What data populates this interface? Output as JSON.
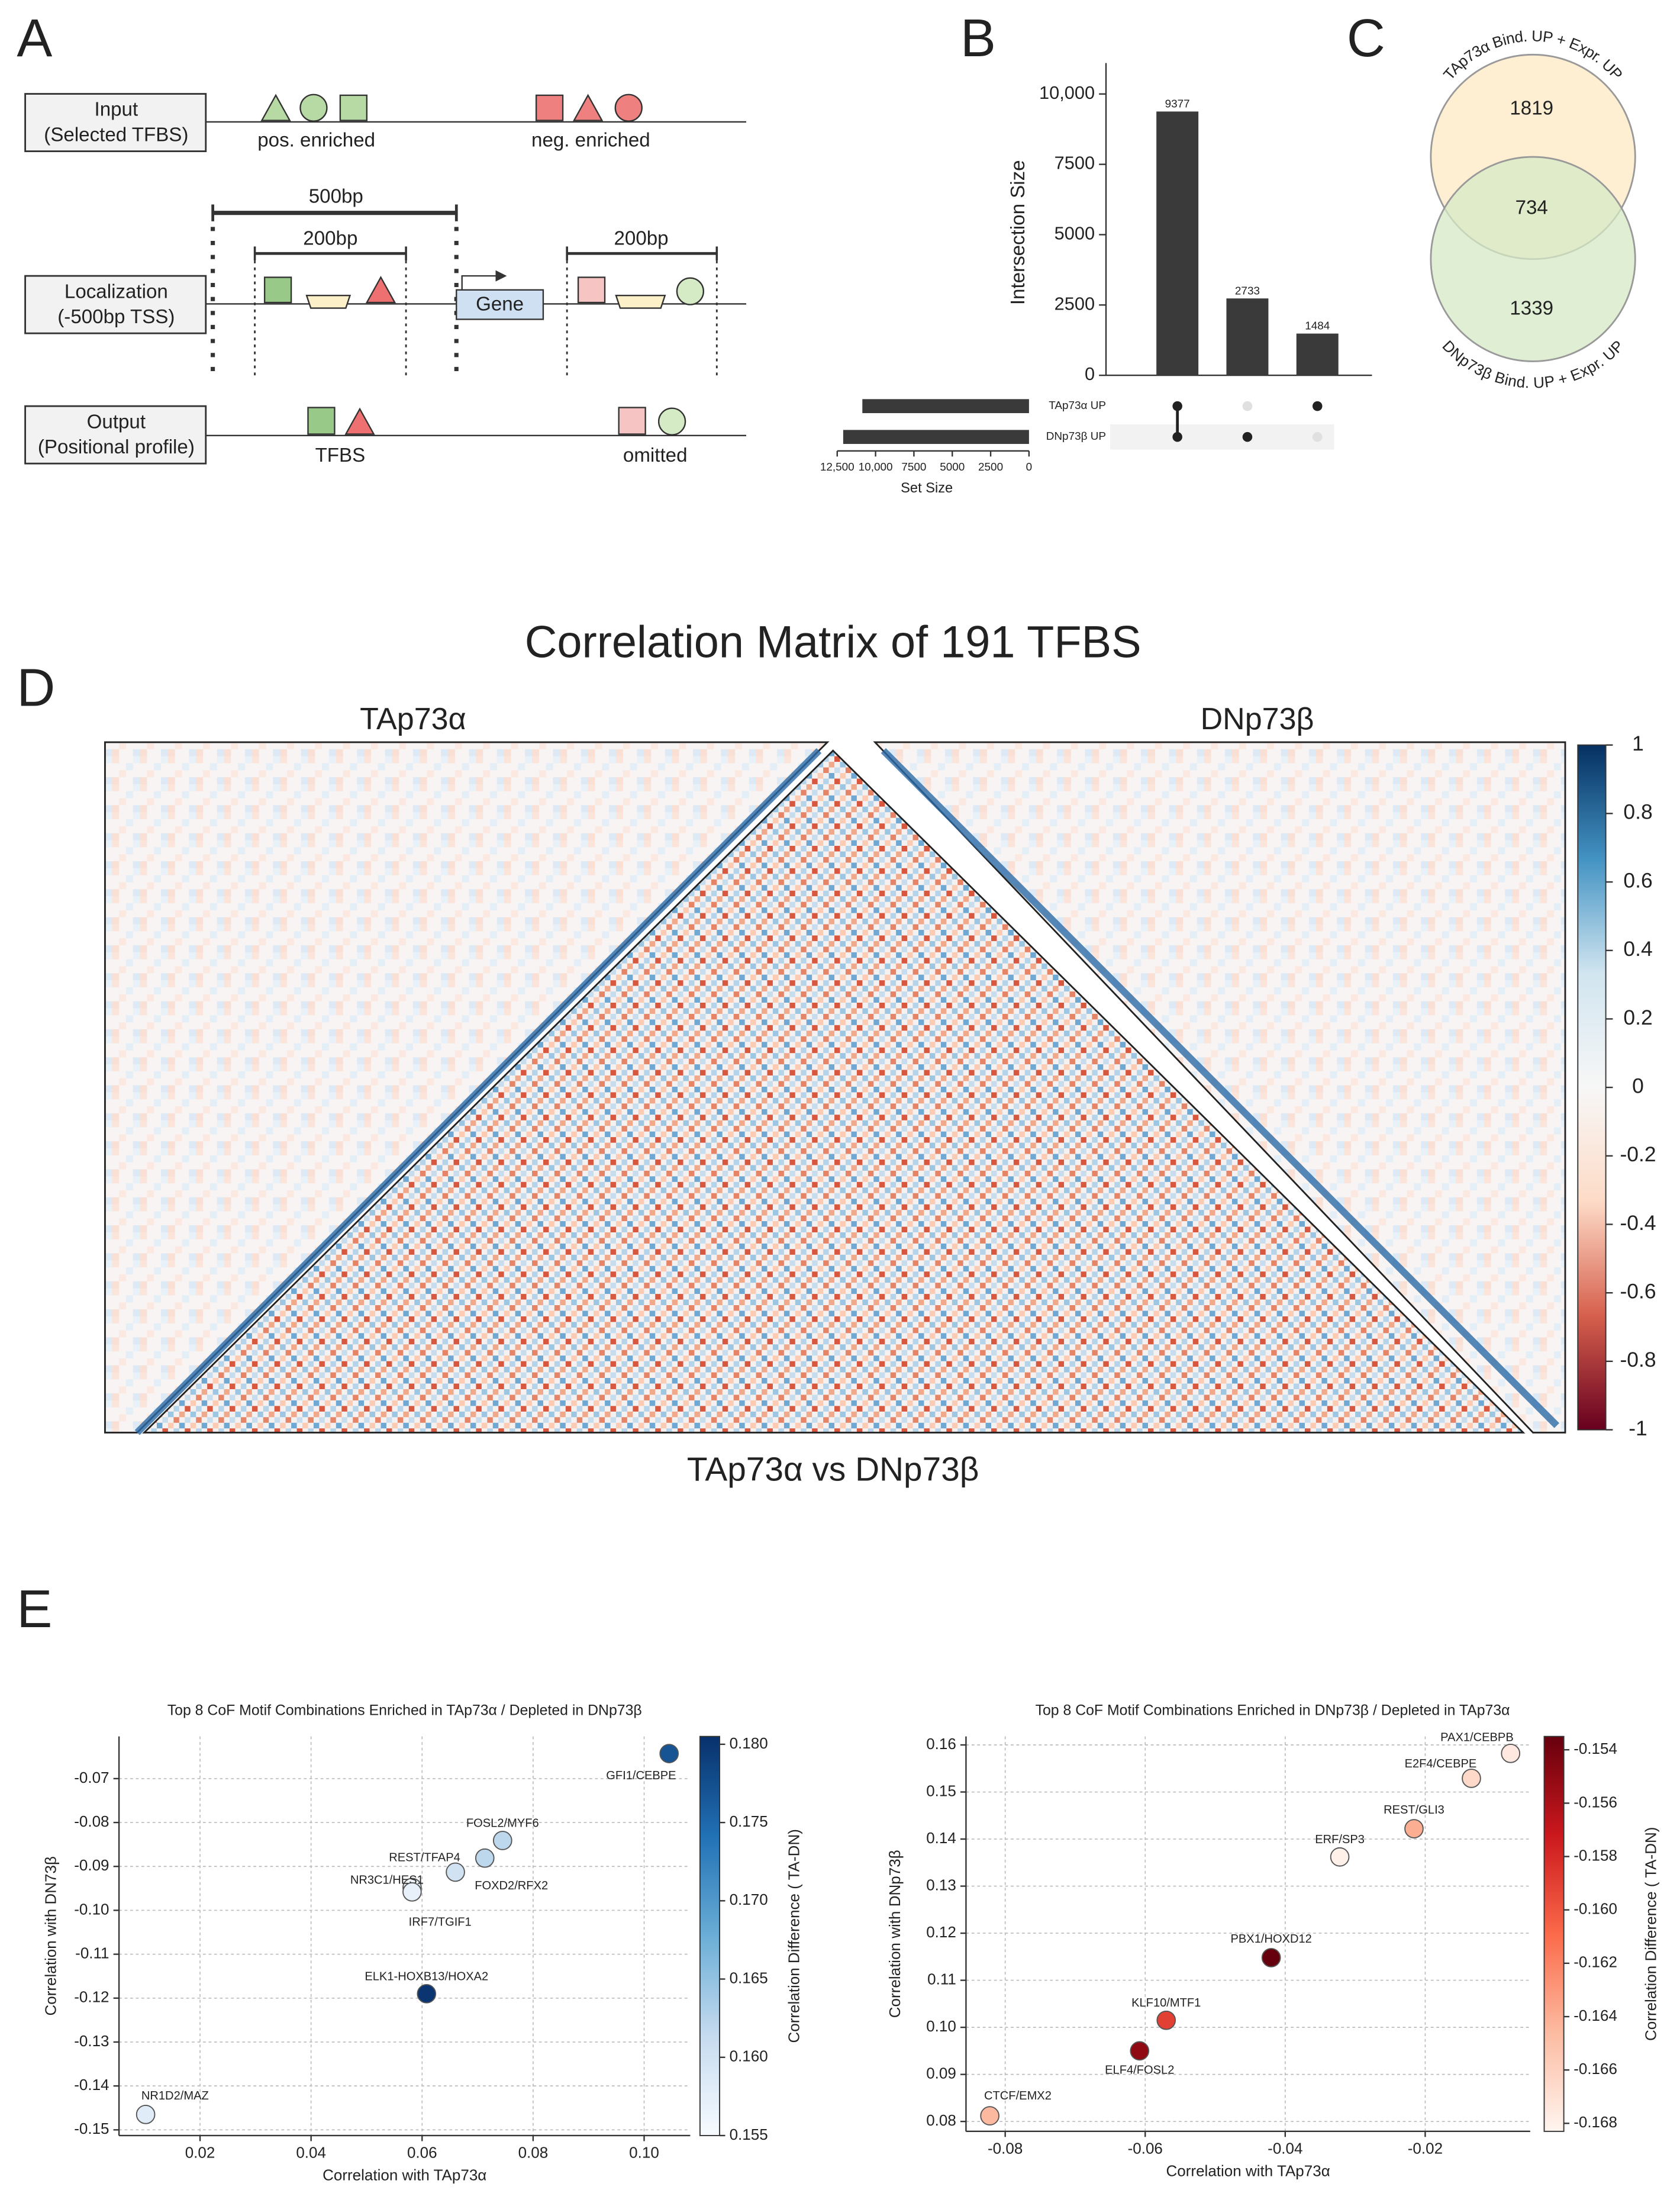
{
  "panel_labels": [
    "A",
    "B",
    "C",
    "D",
    "E"
  ],
  "panel_a": {
    "rows": [
      [
        "Input",
        "(Selected TFBS)"
      ],
      [
        "Localization",
        "(-500bp TSS)"
      ],
      [
        "Output",
        "(Positional profile)"
      ]
    ],
    "pos_label": "pos. enriched",
    "neg_label": "neg. enriched",
    "span_500": "500bp",
    "span_200_left": "200bp",
    "span_200_right": "200bp",
    "gene": "Gene",
    "kept": "TFBS",
    "omitted": "omitted"
  },
  "panel_d": {
    "title": "Correlation Matrix of 191 TFBS",
    "left_label": "TAp73α",
    "right_label": "DNp73β",
    "bottom_label": "TAp73α vs DNp73β",
    "clim": [
      -1,
      1
    ],
    "ticks": [
      1,
      0.8,
      0.6,
      0.4,
      0.2,
      0,
      -0.2,
      -0.4,
      -0.6,
      -0.8,
      -1
    ],
    "colormap": [
      "#67001f",
      "#d6604d",
      "#fddbc7",
      "#f7f7f7",
      "#d1e5f0",
      "#4393c3",
      "#053061"
    ]
  },
  "chart_data": [
    {
      "type": "upset",
      "ylabel": "Intersection Size",
      "ylim": [
        0,
        11100
      ],
      "yticks": [
        0,
        2500,
        5000,
        7500,
        {
          "value": 10000,
          "label": "10,000"
        }
      ],
      "values": [
        9377,
        2733,
        1484
      ],
      "set_names": [
        "TAp73α UP",
        "DNp73β UP"
      ],
      "membership": [
        [
          1,
          1
        ],
        [
          0,
          1
        ],
        [
          1,
          0
        ]
      ],
      "set_sizes": [
        10861,
        12110
      ],
      "xlabel": "Set Size",
      "xlim": [
        12500,
        0
      ],
      "xticks": [
        {
          "value": 12500,
          "label": "12,500"
        },
        {
          "value": 10000,
          "label": "10,000"
        },
        7500,
        5000,
        2500,
        0
      ],
      "color": "#3a3a3a"
    },
    {
      "type": "venn",
      "sets": [
        {
          "name": "TAp73α Bind. UP + Expr. UP",
          "color": "#fde9c4"
        },
        {
          "name": "DNp73β Bind. UP + Expr. UP",
          "color": "#d6e9c6"
        }
      ],
      "values": [
        1819,
        734,
        1339
      ]
    },
    {
      "type": "scatter",
      "title": "Top 8 CoF Motif Combinations Enriched in TAp73α / Depleted in DNp73β",
      "xlabel": "Correlation with TAp73α",
      "ylabel": "Correlation with DN73β",
      "colorbar_label": "Correlation Difference ( TA-DN)",
      "point_labels": [
        "GFI1/CEBPE",
        "FOSL2/MYF6",
        "FOXD2/RFX2",
        "REST/TFAP4",
        "NR3C1/HES1",
        "IRF7/TGIF1",
        "ELK1-HOXB13/HOXA2",
        "NR1D2/MAZ"
      ],
      "x": [
        0.1045,
        0.0745,
        0.066,
        0.0713,
        0.0582,
        0.0582,
        0.0608,
        0.0102
      ],
      "y": [
        -0.0643,
        -0.0841,
        -0.0913,
        -0.0881,
        -0.0948,
        -0.0958,
        -0.119,
        -0.1465
      ],
      "color_values": [
        0.177,
        0.162,
        0.16,
        0.162,
        0.156,
        0.157,
        0.18,
        0.158
      ],
      "xlim": [
        0.0054,
        0.1083
      ],
      "ylim": [
        -0.1513,
        -0.0604
      ],
      "xticks": [
        0.02,
        0.04,
        0.06,
        0.08,
        {
          "value": 0.1,
          "label": "0.10"
        }
      ],
      "yticks": [
        -0.07,
        -0.08,
        -0.09,
        {
          "value": -0.1,
          "label": "-0.10"
        },
        -0.11,
        -0.12,
        -0.13,
        -0.14,
        {
          "value": -0.15,
          "label": "-0.15"
        }
      ],
      "clim": [
        0.155,
        0.1805
      ],
      "cticks": [
        {
          "value": 0.18,
          "label": "0.180"
        },
        0.175,
        {
          "value": 0.17,
          "label": "0.170"
        },
        0.165,
        {
          "value": 0.16,
          "label": "0.160"
        },
        0.155
      ],
      "colormap": [
        "#f7fbff",
        "#c6dbef",
        "#6baed6",
        "#2171b5",
        "#08306b"
      ],
      "grid": true
    },
    {
      "type": "scatter",
      "title": "Top 8 CoF Motif Combinations Enriched in DNp73β / Depleted in TAp73α",
      "xlabel": "Correlation with TAp73α",
      "ylabel": "Correlation with DNp73β",
      "colorbar_label": "Correlation Difference ( TA-DN)",
      "point_labels": [
        "PAX1/CEBPB",
        "E2F4/CEBPE",
        "REST/GLI3",
        "ERF/SP3",
        "PBX1/HOXD12",
        "KLF10/MTF1",
        "ELF4/FOSL2",
        "CTCF/EMX2"
      ],
      "x": [
        -0.0078,
        -0.0134,
        -0.0216,
        -0.0322,
        -0.042,
        -0.057,
        -0.0608,
        -0.0822
      ],
      "y": [
        0.1582,
        0.1529,
        0.1422,
        0.1362,
        0.1148,
        0.1015,
        0.095,
        0.0812
      ],
      "color_values": [
        -0.1675,
        -0.1665,
        -0.164,
        -0.168,
        -0.1535,
        -0.159,
        -0.155,
        -0.1645
      ],
      "xlim": [
        -0.0856,
        -0.005
      ],
      "ylim": [
        0.0779,
        0.1618
      ],
      "xticks": [
        -0.08,
        -0.06,
        -0.04,
        -0.02
      ],
      "yticks": [
        0.16,
        0.15,
        0.14,
        0.13,
        0.12,
        0.11,
        {
          "value": 0.1,
          "label": "0.10"
        },
        0.09,
        0.08
      ],
      "clim": [
        -0.1683,
        -0.1535
      ],
      "cticks": [
        -0.154,
        -0.156,
        -0.158,
        {
          "value": -0.16,
          "label": "-0.160"
        },
        -0.162,
        -0.164,
        -0.166,
        -0.168
      ],
      "colormap": [
        "#fff5f0",
        "#fcbba1",
        "#fb6a4a",
        "#cb181d",
        "#67000d"
      ],
      "grid": true
    }
  ]
}
